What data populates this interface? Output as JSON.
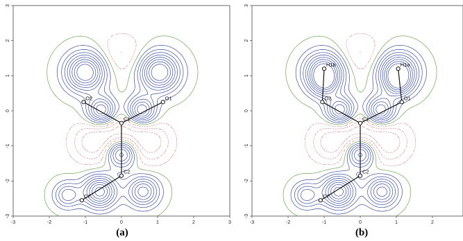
{
  "panels": [
    {
      "id": "a",
      "caption": "(a)",
      "x_ticks": [
        "-3",
        "-2",
        "-1",
        "0",
        "1",
        "2",
        "3"
      ],
      "y_ticks": [
        "3",
        "2",
        "1",
        "0",
        "-1",
        "-2",
        "-3"
      ],
      "atoms": [
        {
          "label": "O2",
          "x": -1.05,
          "y": 0.25
        },
        {
          "label": "O1",
          "x": 1.15,
          "y": 0.25
        },
        {
          "label": "C1",
          "x": 0.0,
          "y": -0.35
        },
        {
          "label": "C2",
          "x": 0.0,
          "y": -1.85
        },
        {
          "label": "C7",
          "x": -1.1,
          "y": -2.55
        }
      ],
      "bonds": [
        [
          "C1",
          "O2"
        ],
        [
          "C1",
          "O1"
        ],
        [
          "C1",
          "C2"
        ],
        [
          "C2",
          "C7"
        ]
      ]
    },
    {
      "id": "b",
      "caption": "(b)",
      "x_ticks": [
        "-3",
        "-2",
        "-1",
        "0",
        "1",
        "2"
      ],
      "y_ticks": [
        "3",
        "2",
        "1",
        "0",
        "-1",
        "-2",
        "-3"
      ],
      "atoms": [
        {
          "label": "H1b",
          "x": -1.0,
          "y": 1.2
        },
        {
          "label": "H1a",
          "x": 1.05,
          "y": 1.2
        },
        {
          "label": "O2",
          "x": -1.05,
          "y": 0.25
        },
        {
          "label": "O1",
          "x": 1.15,
          "y": 0.25
        },
        {
          "label": "C1",
          "x": 0.0,
          "y": -0.35
        },
        {
          "label": "C2",
          "x": 0.0,
          "y": -1.85
        },
        {
          "label": "C7",
          "x": -1.1,
          "y": -2.55
        }
      ],
      "bonds": [
        [
          "H1b",
          "O2"
        ],
        [
          "H1a",
          "O1"
        ],
        [
          "C1",
          "O2"
        ],
        [
          "C1",
          "O1"
        ],
        [
          "C1",
          "C2"
        ],
        [
          "C2",
          "C7"
        ]
      ]
    }
  ],
  "colors": {
    "positive": "#3b4fa8",
    "zero": "#6aa84f",
    "negative": "#d98a8a",
    "frame": "#444444",
    "bond": "#111111"
  }
}
